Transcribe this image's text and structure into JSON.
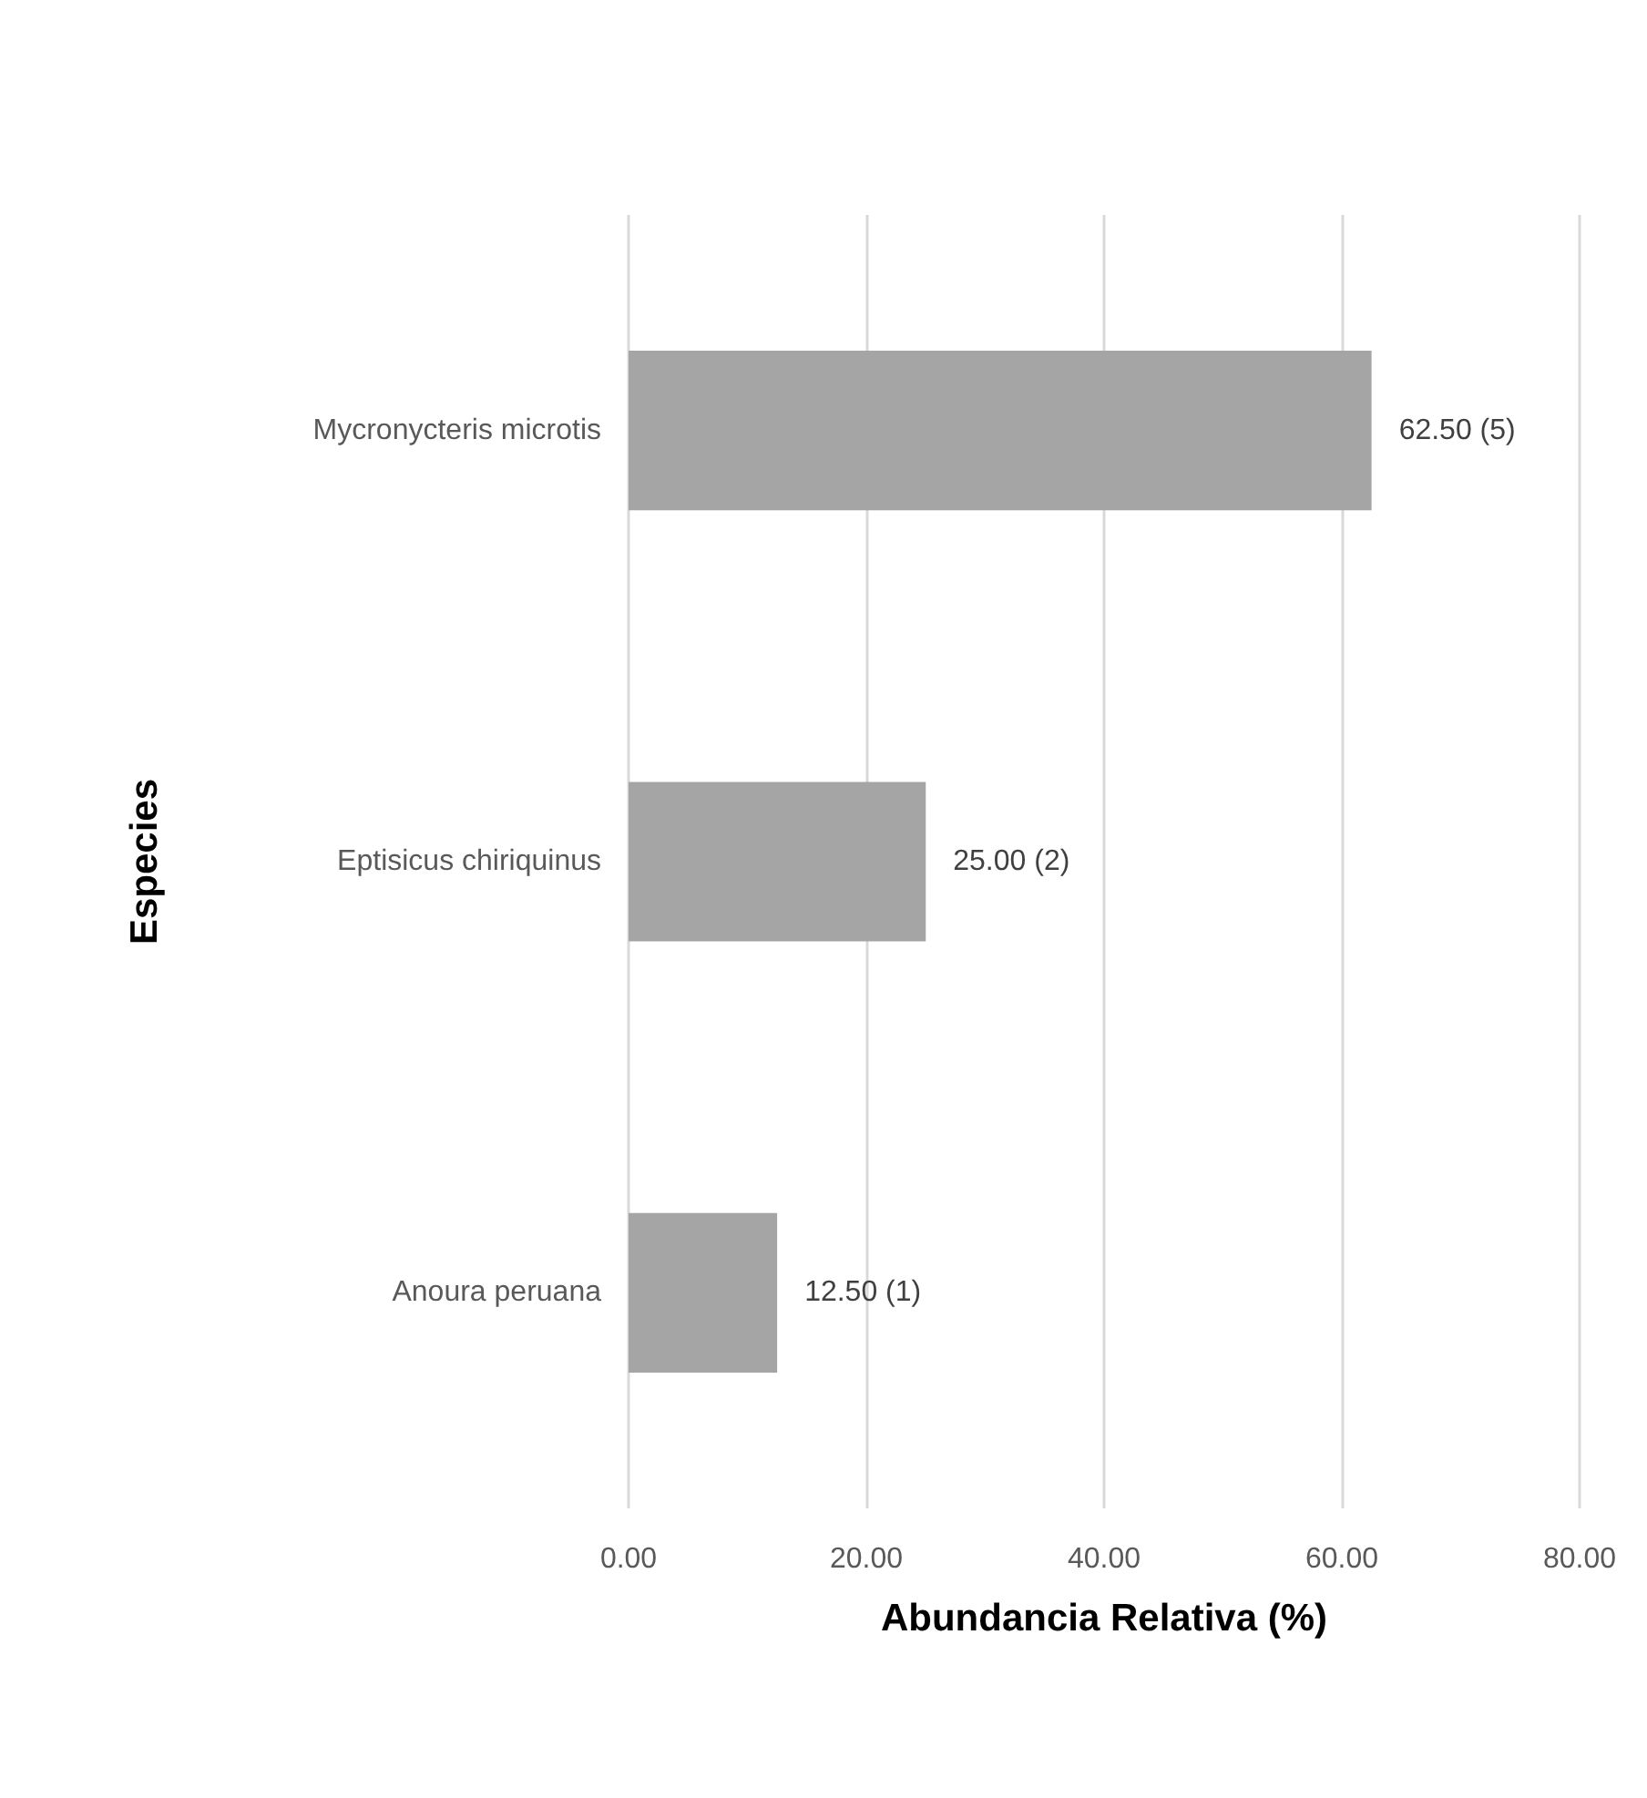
{
  "chart_data": {
    "type": "bar",
    "orientation": "horizontal",
    "xlabel": "Abundancia Relativa (%)",
    "ylabel": "Especies",
    "categories": [
      "Mycronycteris microtis",
      "Eptisicus chiriquinus",
      "Anoura peruana"
    ],
    "values": [
      62.5,
      25,
      12.5
    ],
    "color": "#a5a5a5",
    "value_labels": [
      "62.50 (5)",
      "25.00 (2)",
      "12.50 (1)"
    ],
    "xlim": [
      0,
      80
    ],
    "xticks": [
      {
        "value": 0,
        "label": "0.00"
      },
      {
        "value": 20,
        "label": "20.00"
      },
      {
        "value": 40,
        "label": "40.00"
      },
      {
        "value": 60,
        "label": "60.00"
      },
      {
        "value": 80,
        "label": "80.00"
      }
    ],
    "grid": "x"
  }
}
